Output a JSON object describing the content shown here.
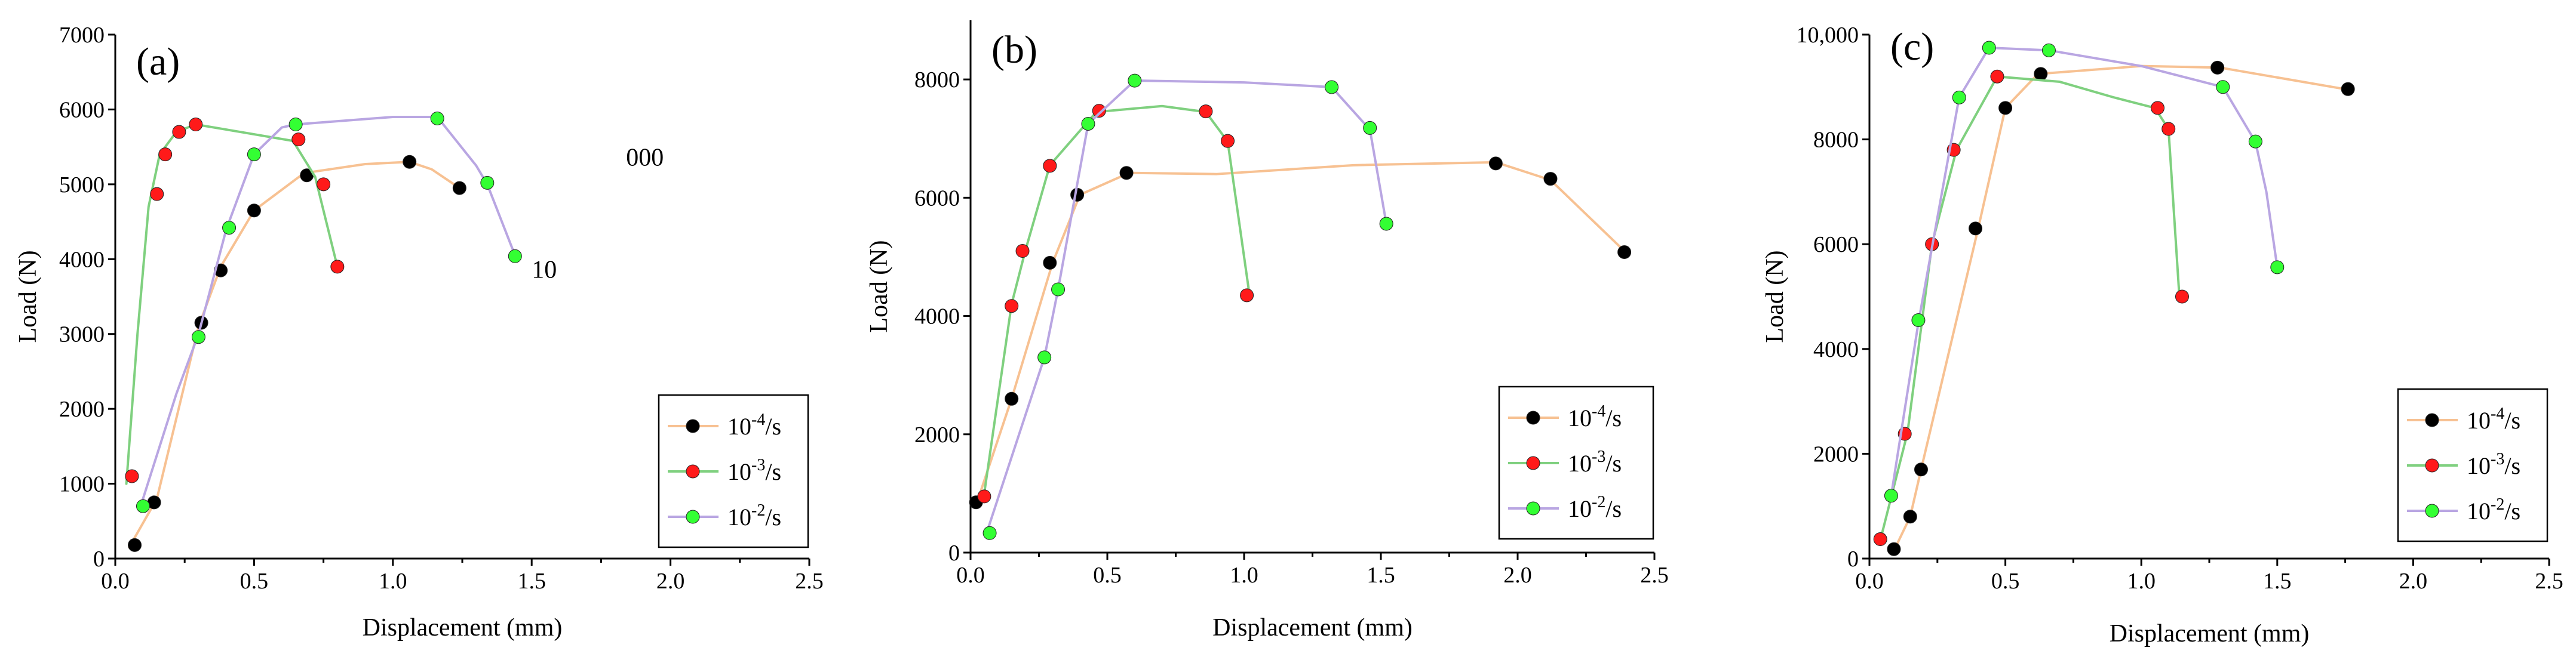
{
  "series_styles": [
    {
      "name": "10^-4/s",
      "line_color": "#F7C192",
      "marker_color": "#000000"
    },
    {
      "name": "10^-3/s",
      "line_color": "#7FD07F",
      "marker_color": "#FF1A1A"
    },
    {
      "name": "10^-2/s",
      "line_color": "#B9A6E2",
      "marker_color": "#33FF33"
    }
  ],
  "chart_data": [
    {
      "type": "line",
      "panel_label": "(a)",
      "xlabel": "Displacement (mm)",
      "ylabel": "Load (N)",
      "xlim": [
        0,
        2.5
      ],
      "ylim": [
        0,
        7000
      ],
      "xticks": [
        0,
        0.5,
        1.0,
        1.5,
        2.0,
        2.5
      ],
      "xtick_labels": [
        "0.0",
        "0.5",
        "1.0",
        "1.5",
        "2.0",
        "2.5"
      ],
      "yticks": [
        0,
        1000,
        2000,
        3000,
        4000,
        5000,
        6000,
        7000
      ],
      "ytick_labels": [
        "0",
        "1000",
        "2000",
        "3000",
        "4000",
        "5000",
        "6000",
        "7000"
      ],
      "legend": {
        "position": "bottom-right",
        "entries": [
          "10⁻⁴/s",
          "10⁻³/s",
          "10⁻²/s"
        ]
      },
      "annotations": [
        {
          "text": "000",
          "x": 1.84,
          "y": 5250
        },
        {
          "text": "10",
          "x": 1.5,
          "y": 3750
        }
      ],
      "series": [
        {
          "name": "10⁻⁴/s",
          "line": [
            [
              0.05,
              150
            ],
            [
              0.15,
              800
            ],
            [
              0.3,
              3100
            ],
            [
              0.38,
              3900
            ],
            [
              0.5,
              4650
            ],
            [
              0.68,
              5150
            ],
            [
              0.9,
              5270
            ],
            [
              1.06,
              5300
            ],
            [
              1.14,
              5200
            ],
            [
              1.24,
              4950
            ]
          ],
          "markers": [
            [
              0.07,
              180
            ],
            [
              0.14,
              750
            ],
            [
              0.31,
              3150
            ],
            [
              0.38,
              3850
            ],
            [
              0.5,
              4650
            ],
            [
              0.69,
              5120
            ],
            [
              1.06,
              5300
            ],
            [
              1.24,
              4950
            ]
          ]
        },
        {
          "name": "10⁻³/s",
          "line": [
            [
              0.04,
              1000
            ],
            [
              0.08,
              3000
            ],
            [
              0.12,
              4700
            ],
            [
              0.16,
              5400
            ],
            [
              0.22,
              5700
            ],
            [
              0.29,
              5800
            ],
            [
              0.45,
              5700
            ],
            [
              0.64,
              5580
            ],
            [
              0.72,
              5100
            ],
            [
              0.8,
              3900
            ]
          ],
          "markers": [
            [
              0.06,
              1100
            ],
            [
              0.15,
              4870
            ],
            [
              0.18,
              5400
            ],
            [
              0.23,
              5700
            ],
            [
              0.29,
              5800
            ],
            [
              0.66,
              5600
            ],
            [
              0.75,
              5000
            ],
            [
              0.8,
              3900
            ]
          ]
        },
        {
          "name": "10⁻²/s",
          "line": [
            [
              0.1,
              800
            ],
            [
              0.22,
              2200
            ],
            [
              0.3,
              3000
            ],
            [
              0.4,
              4400
            ],
            [
              0.5,
              5400
            ],
            [
              0.6,
              5760
            ],
            [
              0.65,
              5800
            ],
            [
              1.0,
              5900
            ],
            [
              1.16,
              5900
            ],
            [
              1.3,
              5250
            ],
            [
              1.34,
              5000
            ],
            [
              1.44,
              4050
            ]
          ],
          "markers": [
            [
              0.1,
              700
            ],
            [
              0.3,
              2960
            ],
            [
              0.41,
              4420
            ],
            [
              0.5,
              5400
            ],
            [
              0.65,
              5800
            ],
            [
              1.16,
              5880
            ],
            [
              1.34,
              5020
            ],
            [
              1.44,
              4040
            ]
          ]
        }
      ]
    },
    {
      "type": "line",
      "panel_label": "(b)",
      "xlabel": "Displacement (mm)",
      "ylabel": "Load (N)",
      "xlim": [
        0,
        2.5
      ],
      "ylim": [
        0,
        9000
      ],
      "xticks": [
        0,
        0.5,
        1.0,
        1.5,
        2.0,
        2.5
      ],
      "xtick_labels": [
        "0.0",
        "0.5",
        "1.0",
        "1.5",
        "2.0",
        "2.5"
      ],
      "yticks": [
        0,
        2000,
        4000,
        6000,
        8000
      ],
      "ytick_labels": [
        "0",
        "2000",
        "4000",
        "6000",
        "8000"
      ],
      "legend": {
        "position": "bottom-right",
        "entries": [
          "10⁻⁴/s",
          "10⁻³/s",
          "10⁻²/s"
        ]
      },
      "annotations": [],
      "series": [
        {
          "name": "10⁻⁴/s",
          "line": [
            [
              0.02,
              800
            ],
            [
              0.15,
              2600
            ],
            [
              0.3,
              4900
            ],
            [
              0.4,
              6050
            ],
            [
              0.58,
              6420
            ],
            [
              0.9,
              6400
            ],
            [
              1.4,
              6550
            ],
            [
              1.92,
              6600
            ],
            [
              2.12,
              6300
            ],
            [
              2.39,
              5100
            ]
          ],
          "markers": [
            [
              0.02,
              850
            ],
            [
              0.15,
              2600
            ],
            [
              0.29,
              4900
            ],
            [
              0.39,
              6050
            ],
            [
              0.57,
              6420
            ],
            [
              1.92,
              6580
            ],
            [
              2.12,
              6320
            ],
            [
              2.39,
              5080
            ]
          ]
        },
        {
          "name": "10⁻³/s",
          "line": [
            [
              0.05,
              1000
            ],
            [
              0.15,
              4200
            ],
            [
              0.2,
              5100
            ],
            [
              0.29,
              6550
            ],
            [
              0.46,
              7450
            ],
            [
              0.7,
              7550
            ],
            [
              0.86,
              7450
            ],
            [
              0.94,
              6950
            ],
            [
              1.02,
              4350
            ]
          ],
          "markers": [
            [
              0.05,
              950
            ],
            [
              0.15,
              4170
            ],
            [
              0.19,
              5100
            ],
            [
              0.29,
              6540
            ],
            [
              0.47,
              7470
            ],
            [
              0.86,
              7460
            ],
            [
              0.94,
              6960
            ],
            [
              1.01,
              4350
            ]
          ]
        },
        {
          "name": "10⁻²/s",
          "line": [
            [
              0.06,
              350
            ],
            [
              0.27,
              3300
            ],
            [
              0.32,
              4450
            ],
            [
              0.43,
              7250
            ],
            [
              0.6,
              7980
            ],
            [
              1.0,
              7950
            ],
            [
              1.32,
              7870
            ],
            [
              1.46,
              7150
            ],
            [
              1.52,
              5560
            ]
          ],
          "markers": [
            [
              0.07,
              330
            ],
            [
              0.27,
              3300
            ],
            [
              0.32,
              4450
            ],
            [
              0.43,
              7250
            ],
            [
              0.6,
              7980
            ],
            [
              1.32,
              7870
            ],
            [
              1.46,
              7180
            ],
            [
              1.52,
              5560
            ]
          ]
        }
      ]
    },
    {
      "type": "line",
      "panel_label": "(c)",
      "xlabel": "Displacement (mm)",
      "ylabel": "Load (N)",
      "xlim": [
        0,
        2.5
      ],
      "ylim": [
        0,
        10000
      ],
      "xticks": [
        0,
        0.5,
        1.0,
        1.5,
        2.0,
        2.5
      ],
      "xtick_labels": [
        "0.0",
        "0.5",
        "1.0",
        "1.5",
        "2.0",
        "2.5"
      ],
      "yticks": [
        0,
        2000,
        4000,
        6000,
        8000,
        10000
      ],
      "ytick_labels": [
        "0",
        "2000",
        "4000",
        "6000",
        "8000",
        "10,000"
      ],
      "legend": {
        "position": "bottom-right",
        "entries": [
          "10⁻⁴/s",
          "10⁻³/s",
          "10⁻²/s"
        ]
      },
      "annotations": [],
      "series": [
        {
          "name": "10⁻⁴/s",
          "line": [
            [
              0.09,
              150
            ],
            [
              0.15,
              800
            ],
            [
              0.19,
              1700
            ],
            [
              0.4,
              6300
            ],
            [
              0.5,
              8600
            ],
            [
              0.62,
              9250
            ],
            [
              1.0,
              9400
            ],
            [
              1.29,
              9370
            ],
            [
              1.76,
              8950
            ]
          ],
          "markers": [
            [
              0.09,
              180
            ],
            [
              0.15,
              800
            ],
            [
              0.19,
              1700
            ],
            [
              0.39,
              6300
            ],
            [
              0.5,
              8600
            ],
            [
              0.63,
              9250
            ],
            [
              1.28,
              9370
            ],
            [
              1.76,
              8960
            ]
          ]
        },
        {
          "name": "10⁻³/s",
          "line": [
            [
              0.04,
              350
            ],
            [
              0.14,
              2400
            ],
            [
              0.23,
              6000
            ],
            [
              0.32,
              7800
            ],
            [
              0.47,
              9200
            ],
            [
              0.7,
              9100
            ],
            [
              0.9,
              8800
            ],
            [
              1.05,
              8600
            ],
            [
              1.1,
              8200
            ],
            [
              1.14,
              5000
            ]
          ],
          "markers": [
            [
              0.04,
              370
            ],
            [
              0.13,
              2380
            ],
            [
              0.23,
              6000
            ],
            [
              0.31,
              7800
            ],
            [
              0.47,
              9200
            ],
            [
              1.06,
              8600
            ],
            [
              1.1,
              8200
            ],
            [
              1.15,
              5000
            ]
          ]
        },
        {
          "name": "10⁻²/s",
          "line": [
            [
              0.08,
              1200
            ],
            [
              0.18,
              4500
            ],
            [
              0.33,
              8800
            ],
            [
              0.44,
              9750
            ],
            [
              0.66,
              9700
            ],
            [
              1.0,
              9400
            ],
            [
              1.3,
              9000
            ],
            [
              1.42,
              7950
            ],
            [
              1.46,
              7000
            ],
            [
              1.5,
              5560
            ]
          ],
          "markers": [
            [
              0.08,
              1200
            ],
            [
              0.18,
              4550
            ],
            [
              0.33,
              8800
            ],
            [
              0.44,
              9750
            ],
            [
              0.66,
              9700
            ],
            [
              1.3,
              9000
            ],
            [
              1.42,
              7960
            ],
            [
              1.5,
              5560
            ]
          ]
        }
      ]
    }
  ]
}
